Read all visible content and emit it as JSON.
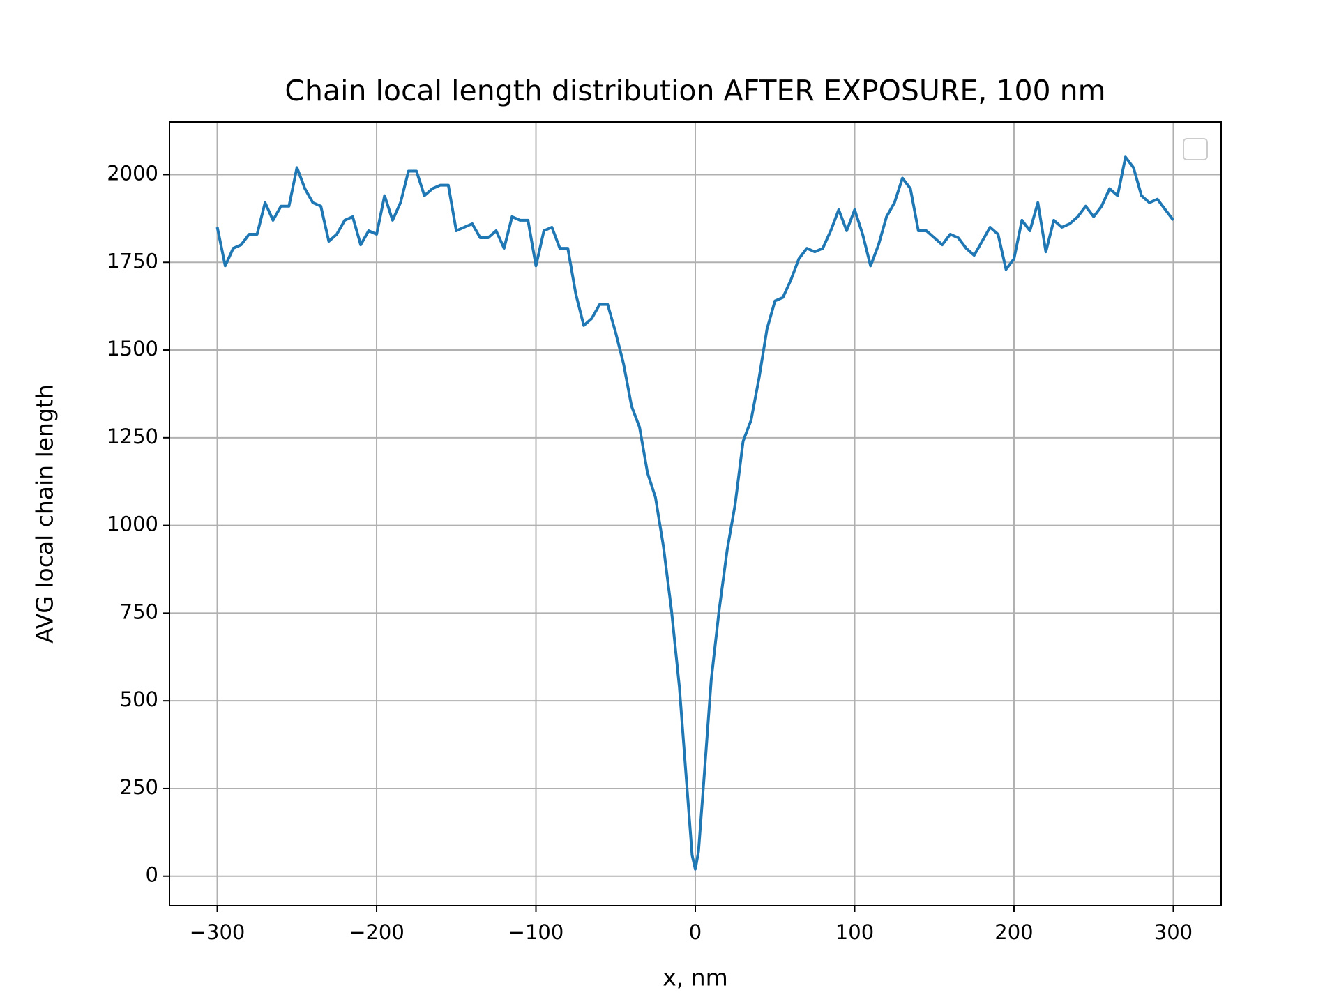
{
  "chart_data": {
    "type": "line",
    "title": "Chain local length distribution AFTER EXPOSURE, 100 nm",
    "x_label": "x, nm",
    "y_label": "AVG local chain length",
    "x": [
      -300,
      -295,
      -290,
      -285,
      -280,
      -275,
      -270,
      -265,
      -260,
      -255,
      -250,
      -245,
      -240,
      -235,
      -230,
      -225,
      -220,
      -215,
      -210,
      -205,
      -200,
      -195,
      -190,
      -185,
      -180,
      -175,
      -170,
      -165,
      -160,
      -155,
      -150,
      -145,
      -140,
      -135,
      -130,
      -125,
      -120,
      -115,
      -110,
      -105,
      -100,
      -95,
      -90,
      -85,
      -80,
      -75,
      -70,
      -65,
      -60,
      -55,
      -50,
      -45,
      -40,
      -35,
      -30,
      -25,
      -20,
      -15,
      -10,
      -5,
      -2,
      0,
      2,
      5,
      10,
      15,
      20,
      25,
      30,
      35,
      40,
      45,
      50,
      55,
      60,
      65,
      70,
      75,
      80,
      85,
      90,
      95,
      100,
      105,
      110,
      115,
      120,
      125,
      130,
      135,
      140,
      145,
      150,
      155,
      160,
      165,
      170,
      175,
      180,
      185,
      190,
      195,
      200,
      205,
      210,
      215,
      220,
      225,
      230,
      235,
      240,
      245,
      250,
      255,
      260,
      265,
      270,
      275,
      280,
      285,
      290,
      295,
      300
    ],
    "series": [
      {
        "name": "AVG local chain length",
        "color": "#1f77b4",
        "values": [
          1850,
          1740,
          1790,
          1800,
          1830,
          1830,
          1920,
          1870,
          1910,
          1910,
          2020,
          1960,
          1920,
          1910,
          1810,
          1830,
          1870,
          1880,
          1800,
          1840,
          1830,
          1940,
          1870,
          1920,
          2010,
          2010,
          1940,
          1960,
          1970,
          1970,
          1840,
          1850,
          1860,
          1820,
          1820,
          1840,
          1790,
          1880,
          1870,
          1870,
          1740,
          1840,
          1850,
          1790,
          1790,
          1660,
          1570,
          1590,
          1630,
          1630,
          1550,
          1460,
          1340,
          1280,
          1150,
          1080,
          940,
          760,
          540,
          240,
          60,
          20,
          70,
          250,
          560,
          760,
          930,
          1060,
          1240,
          1300,
          1420,
          1560,
          1640,
          1650,
          1700,
          1760,
          1790,
          1780,
          1790,
          1840,
          1900,
          1840,
          1900,
          1830,
          1740,
          1800,
          1880,
          1920,
          1990,
          1960,
          1840,
          1840,
          1820,
          1800,
          1830,
          1820,
          1790,
          1770,
          1810,
          1850,
          1830,
          1730,
          1760,
          1870,
          1840,
          1920,
          1780,
          1870,
          1850,
          1860,
          1880,
          1910,
          1880,
          1910,
          1960,
          1940,
          2050,
          2020,
          1940,
          1920,
          1930,
          1900,
          1870
        ]
      }
    ],
    "xlim": [
      -330,
      330
    ],
    "ylim": [
      -84,
      2150
    ],
    "xticks": [
      {
        "value": -300,
        "label": "−300"
      },
      {
        "value": -200,
        "label": "−200"
      },
      {
        "value": -100,
        "label": "−100"
      },
      0,
      100,
      200,
      300
    ],
    "yticks": [
      0,
      250,
      500,
      750,
      1000,
      1250,
      1500,
      1750,
      2000
    ],
    "grid": true
  }
}
